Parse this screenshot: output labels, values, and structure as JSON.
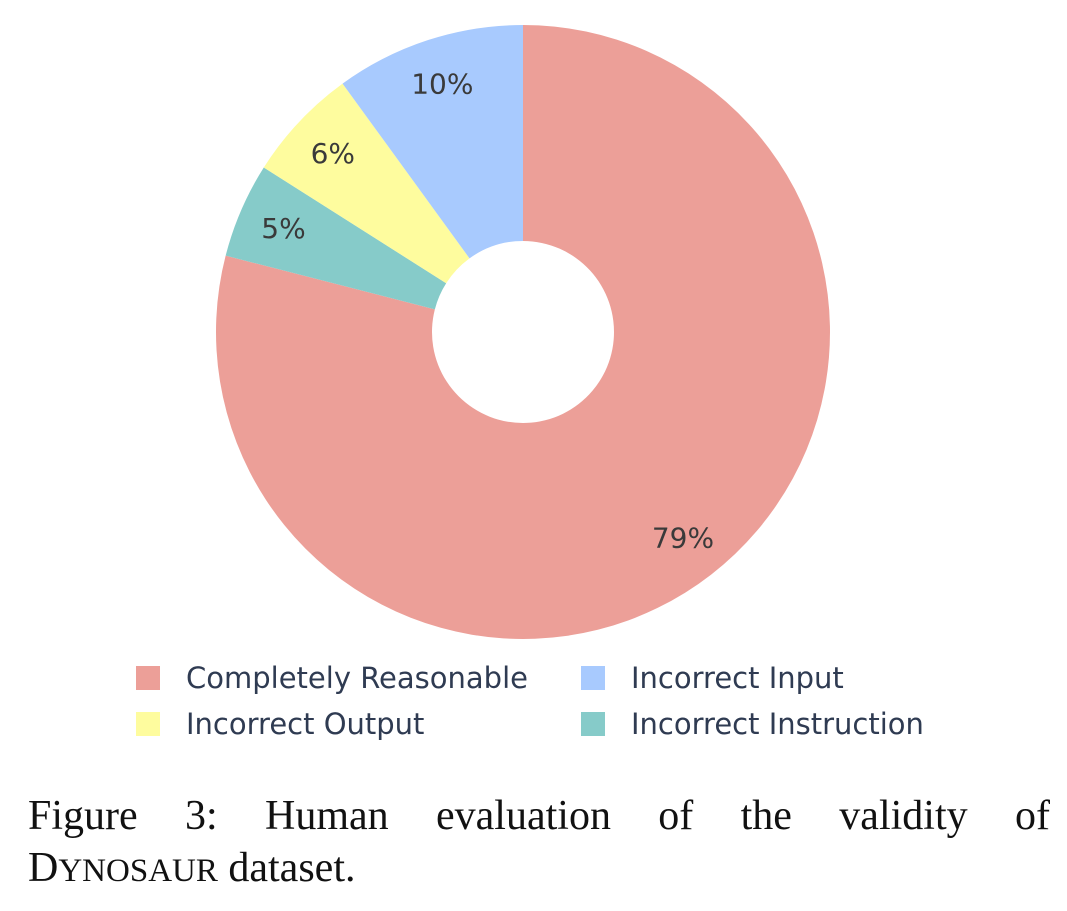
{
  "chart_data": {
    "type": "pie",
    "donut": true,
    "slices": [
      {
        "label": "Completely Reasonable",
        "value": 79,
        "display": "79%",
        "color": "#ec9f98"
      },
      {
        "label": "Incorrect Instruction",
        "value": 5,
        "display": "5%",
        "color": "#86cbc9"
      },
      {
        "label": "Incorrect Output",
        "value": 6,
        "display": "6%",
        "color": "#fefc9e"
      },
      {
        "label": "Incorrect Input",
        "value": 10,
        "display": "10%",
        "color": "#a8cafe"
      }
    ],
    "legend": [
      {
        "label": "Completely Reasonable",
        "color": "#ec9f98"
      },
      {
        "label": "Incorrect Input",
        "color": "#a8cafe"
      },
      {
        "label": "Incorrect Output",
        "color": "#fefc9e"
      },
      {
        "label": "Incorrect Instruction",
        "color": "#86cbc9"
      }
    ],
    "legend_placement": "bottom"
  },
  "caption": {
    "line1_words": [
      "Figure",
      "3:",
      "Human",
      "evaluation",
      "of",
      "the",
      "validity",
      "of"
    ],
    "name_initial": "D",
    "name_rest": "YNOSAUR",
    "line2_rest": " dataset."
  }
}
